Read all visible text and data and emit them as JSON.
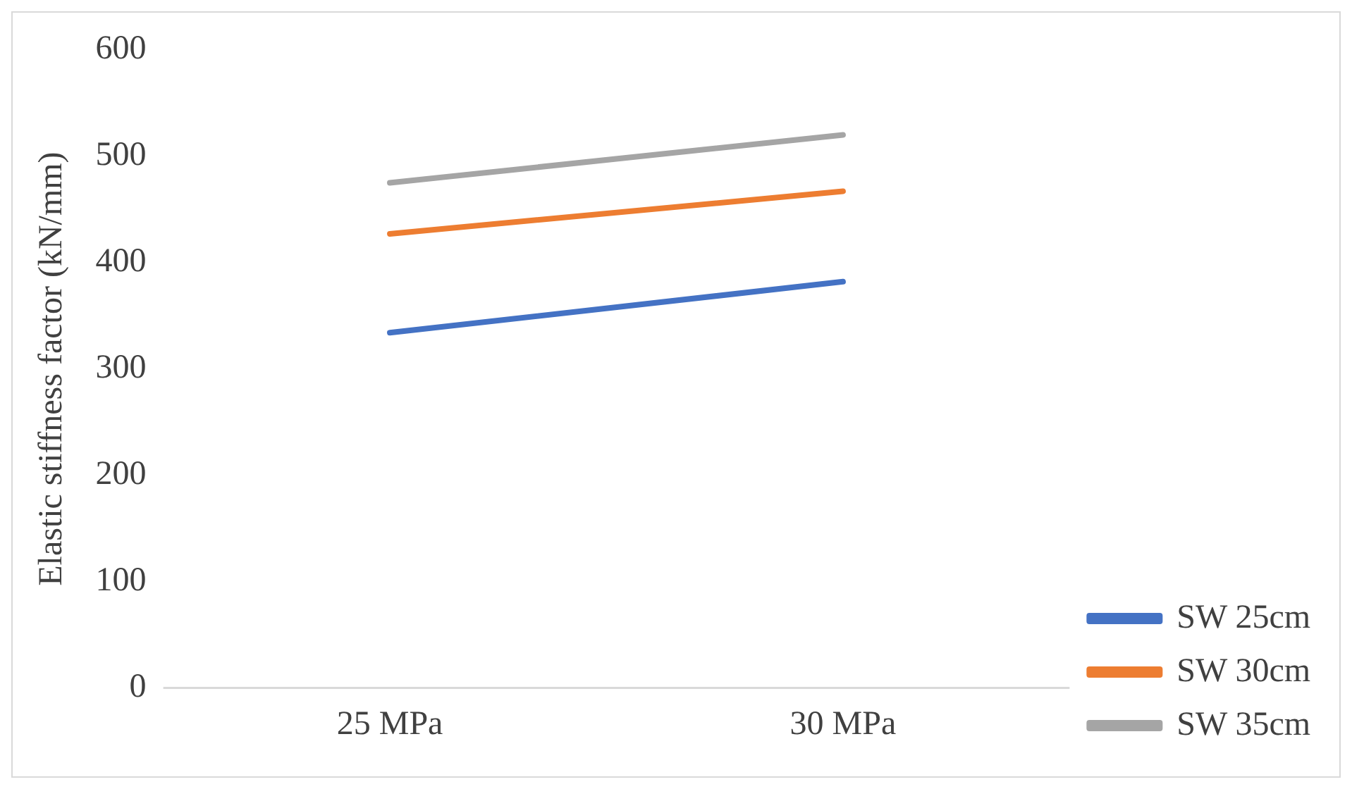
{
  "chart_data": {
    "type": "line",
    "ylabel": "Elastic stiffness factor (kN/mm)",
    "categories": [
      "25 MPa",
      "30 MPa"
    ],
    "series": [
      {
        "name": "SW 25cm",
        "color": "#4472c4",
        "values": [
          334,
          382
        ]
      },
      {
        "name": "SW 30cm",
        "color": "#ed7d31",
        "values": [
          427,
          467
        ]
      },
      {
        "name": "SW 35cm",
        "color": "#a5a5a5",
        "values": [
          475,
          520
        ]
      }
    ],
    "ylim": [
      0,
      600
    ],
    "yticks": [
      0,
      100,
      200,
      300,
      400,
      500,
      600
    ],
    "grid": false,
    "legend": "bottom right",
    "marker": "none",
    "line_style": "solid"
  }
}
